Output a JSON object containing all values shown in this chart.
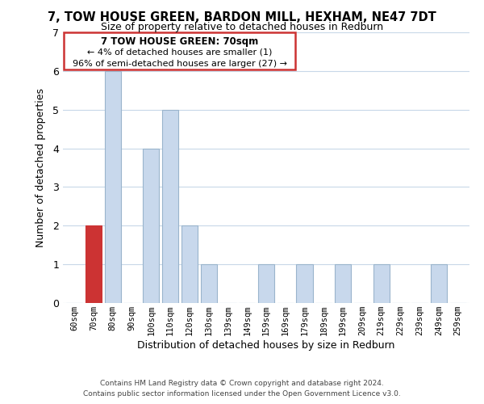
{
  "title": "7, TOW HOUSE GREEN, BARDON MILL, HEXHAM, NE47 7DT",
  "subtitle": "Size of property relative to detached houses in Redburn",
  "xlabel": "Distribution of detached houses by size in Redburn",
  "ylabel": "Number of detached properties",
  "categories": [
    "60sqm",
    "70sqm",
    "80sqm",
    "90sqm",
    "100sqm",
    "110sqm",
    "120sqm",
    "130sqm",
    "139sqm",
    "149sqm",
    "159sqm",
    "169sqm",
    "179sqm",
    "189sqm",
    "199sqm",
    "209sqm",
    "219sqm",
    "229sqm",
    "239sqm",
    "249sqm",
    "259sqm"
  ],
  "values": [
    0,
    2,
    6,
    0,
    4,
    5,
    2,
    1,
    0,
    0,
    1,
    0,
    1,
    0,
    1,
    0,
    1,
    0,
    0,
    1,
    0
  ],
  "highlight_index": 1,
  "highlight_color": "#cc3333",
  "bar_color": "#c8d8ec",
  "bar_edge_color": "#9ab4cc",
  "ylim": [
    0,
    7
  ],
  "yticks": [
    0,
    1,
    2,
    3,
    4,
    5,
    6,
    7
  ],
  "annotation_title": "7 TOW HOUSE GREEN: 70sqm",
  "annotation_line1": "← 4% of detached houses are smaller (1)",
  "annotation_line2": "96% of semi-detached houses are larger (27) →",
  "footer_line1": "Contains HM Land Registry data © Crown copyright and database right 2024.",
  "footer_line2": "Contains public sector information licensed under the Open Government Licence v3.0.",
  "bg_color": "#ffffff",
  "grid_color": "#c8d8e8"
}
